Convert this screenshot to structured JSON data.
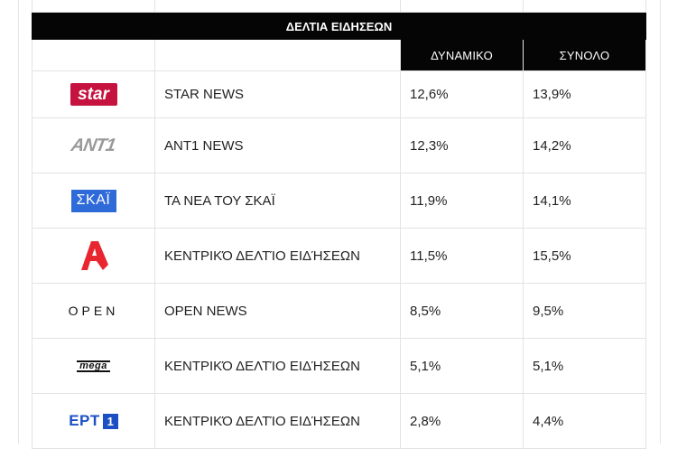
{
  "table": {
    "title": "ΔΕΛΤΙΑ ΕΙΔΗΣΕΩΝ",
    "columns": {
      "dynamic": "ΔΥΝΑΜΙΚΟ",
      "total": "ΣΥΝΟΛΟ"
    },
    "rows": [
      {
        "logo": "star",
        "logo_text": "star",
        "program": "STAR NEWS",
        "dynamic": "12,6%",
        "total": "13,9%"
      },
      {
        "logo": "ant1",
        "logo_text": "ANT1",
        "program": "ANT1 NEWS",
        "dynamic": "12,3%",
        "total": "14,2%"
      },
      {
        "logo": "skai",
        "logo_text": "ΣΚΑΪ",
        "program": "ΤΑ ΝΕΑ ΤΟΥ ΣΚΑΪ",
        "dynamic": "11,9%",
        "total": "14,1%"
      },
      {
        "logo": "alpha",
        "logo_text": "",
        "program": "ΚΕΝΤΡΙΚΌ ΔΕΛΤΊΟ ΕΙΔΉΣΕΩΝ",
        "dynamic": "11,5%",
        "total": "15,5%"
      },
      {
        "logo": "open",
        "logo_text": "OPEN",
        "program": "OPEN NEWS",
        "dynamic": "8,5%",
        "total": "9,5%"
      },
      {
        "logo": "mega",
        "logo_text": "mega",
        "program": "ΚΕΝΤΡΙΚΌ ΔΕΛΤΊΟ ΕΙΔΉΣΕΩΝ",
        "dynamic": "5,1%",
        "total": "5,1%"
      },
      {
        "logo": "ert1",
        "logo_text": "ΕΡΤ",
        "logo_badge": "1",
        "program": "ΚΕΝΤΡΙΚΌ ΔΕΛΤΊΟ ΕΙΔΉΣΕΩΝ",
        "dynamic": "2,8%",
        "total": "4,4%"
      }
    ]
  },
  "colors": {
    "star": "#c6123f",
    "skai": "#2f6ad9",
    "alpha": "#e8262f",
    "ert": "#1c4fc4",
    "header": "#050505"
  }
}
